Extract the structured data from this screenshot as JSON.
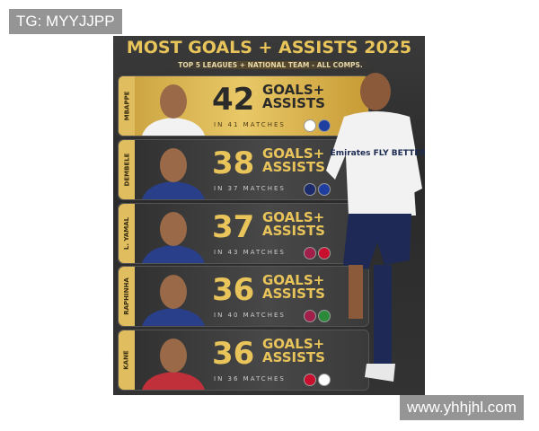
{
  "watermarks": {
    "top_left": "TG: MYYJJPP",
    "bottom_right": "www.yhhjhl.com"
  },
  "title": "MOST GOALS + ASSISTS 2025",
  "subtitle": "TOP 5 LEAGUES + NATIONAL TEAM - ALL COMPS.",
  "label_line1": "GOALS+",
  "label_line2": "ASSISTS",
  "players": [
    {
      "name": "MBAPPE",
      "total": "42",
      "matches": "IN 41 MATCHES",
      "club_color": "#ffffff",
      "nation_color": "#1f3fa0",
      "jersey": "#f2f2f2"
    },
    {
      "name": "DEMBELE",
      "total": "38",
      "matches": "IN 37 MATCHES",
      "club_color": "#1b2b6b",
      "nation_color": "#1f3fa0",
      "jersey": "#2a3f8a"
    },
    {
      "name": "L. YAMAL",
      "total": "37",
      "matches": "IN 43 MATCHES",
      "club_color": "#a0204a",
      "nation_color": "#c8102e",
      "jersey": "#2a3f8a"
    },
    {
      "name": "RAPHINHA",
      "total": "36",
      "matches": "IN 40 MATCHES",
      "club_color": "#a0204a",
      "nation_color": "#2a8a3a",
      "jersey": "#2a3f8a"
    },
    {
      "name": "KANE",
      "total": "36",
      "matches": "IN 36 MATCHES",
      "club_color": "#c8102e",
      "nation_color": "#ffffff",
      "jersey": "#c0303a"
    }
  ],
  "hero_shirt_text": "Emirates FLY BETTER"
}
